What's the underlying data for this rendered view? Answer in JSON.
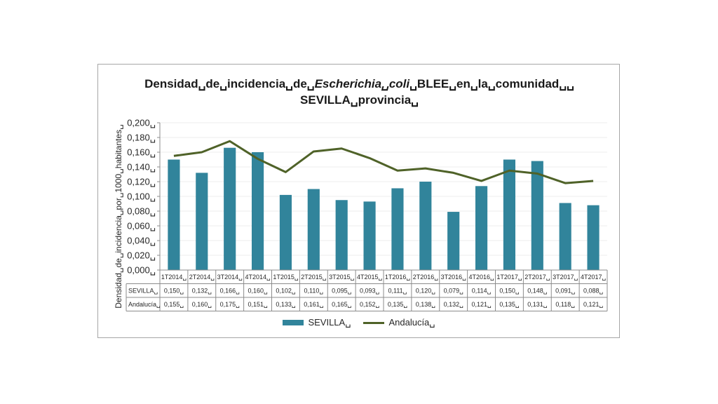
{
  "chart_data": {
    "type": "bar",
    "title_parts": [
      "Densidad␣de␣incidencia␣de␣",
      "Escherichia␣coli",
      "␣BLEE␣en␣la␣comunidad␣␣"
    ],
    "title_line2": "SEVILLA␣provincia␣",
    "ylabel": "Densidad␣de␣incidencia␣por␣1000␣habitantes␣",
    "ylim": [
      0,
      0.2
    ],
    "yticks": [
      "0,000␣",
      "0,020␣",
      "0,040␣",
      "0,060␣",
      "0,080␣",
      "0,100␣",
      "0,120␣",
      "0,140␣",
      "0,160␣",
      "0,180␣",
      "0,200␣"
    ],
    "categories": [
      "1T2014␣",
      "2T2014␣",
      "3T2014␣",
      "4T2014␣",
      "1T2015␣",
      "2T2015␣",
      "3T2015␣",
      "4T2015␣",
      "1T2016␣",
      "2T2016␣",
      "3T2016␣",
      "4T2016␣",
      "1T2017␣",
      "2T2017␣",
      "3T2017␣",
      "4T2017␣"
    ],
    "series": [
      {
        "name": "SEVILLA␣",
        "type": "bar",
        "color": "#31849b",
        "values": [
          0.15,
          0.132,
          0.166,
          0.16,
          0.102,
          0.11,
          0.095,
          0.093,
          0.111,
          0.12,
          0.079,
          0.114,
          0.15,
          0.148,
          0.091,
          0.088
        ],
        "labels": [
          "0,150␣",
          "0,132␣",
          "0,166␣",
          "0,160␣",
          "0,102␣",
          "0,110␣",
          "0,095␣",
          "0,093␣",
          "0,111␣",
          "0,120␣",
          "0,079␣",
          "0,114␣",
          "0,150␣",
          "0,148␣",
          "0,091␣",
          "0,088␣"
        ]
      },
      {
        "name": "Andalucía␣",
        "type": "line",
        "color": "#4f6228",
        "values": [
          0.155,
          0.16,
          0.175,
          0.151,
          0.133,
          0.161,
          0.165,
          0.152,
          0.135,
          0.138,
          0.132,
          0.121,
          0.135,
          0.131,
          0.118,
          0.121
        ],
        "labels": [
          "0,155␣",
          "0,160␣",
          "0,175␣",
          "0,151␣",
          "0,133␣",
          "0,161␣",
          "0,165␣",
          "0,152␣",
          "0,135␣",
          "0,138␣",
          "0,132␣",
          "0,121␣",
          "0,135␣",
          "0,131␣",
          "0,118␣",
          "0,121␣"
        ]
      }
    ],
    "grid": true,
    "legend": "bottom",
    "data_table": true
  }
}
